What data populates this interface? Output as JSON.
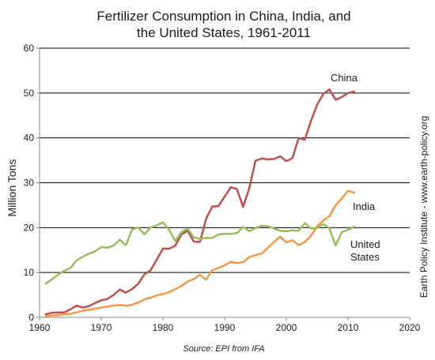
{
  "chart_data": {
    "type": "line",
    "title_line1": "Fertilizer Consumption in China, India, and",
    "title_line2": "the United States, 1961-2011",
    "xlabel": "",
    "ylabel": "Million Tons",
    "xlim": [
      1960,
      2020
    ],
    "ylim": [
      0,
      60
    ],
    "x_ticks": [
      1960,
      1970,
      1980,
      1990,
      2000,
      2010,
      2020
    ],
    "y_ticks": [
      0,
      10,
      20,
      30,
      40,
      50,
      60
    ],
    "grid": "horizontal",
    "source": "Source: EPI from IFA",
    "side_note": "Earth Policy Institute - www.earth-policy.org",
    "series": [
      {
        "name": "China",
        "color": "#c0504d",
        "x": [
          1961,
          1962,
          1963,
          1964,
          1965,
          1966,
          1967,
          1968,
          1969,
          1970,
          1971,
          1972,
          1973,
          1974,
          1975,
          1976,
          1977,
          1978,
          1979,
          1980,
          1981,
          1982,
          1983,
          1984,
          1985,
          1986,
          1987,
          1988,
          1989,
          1990,
          1991,
          1992,
          1993,
          1994,
          1995,
          1996,
          1997,
          1998,
          1999,
          2000,
          2001,
          2002,
          2003,
          2004,
          2005,
          2006,
          2007,
          2008,
          2009,
          2010,
          2011
        ],
        "values": [
          0.7,
          1.0,
          1.1,
          1.1,
          1.8,
          2.6,
          2.2,
          2.5,
          3.2,
          3.8,
          4.1,
          5.0,
          6.2,
          5.5,
          6.3,
          7.5,
          9.6,
          10.5,
          12.9,
          15.3,
          15.3,
          16.0,
          18.5,
          19.3,
          16.9,
          16.8,
          22.0,
          24.7,
          24.8,
          26.9,
          29.0,
          28.6,
          24.6,
          28.8,
          34.9,
          35.4,
          35.2,
          35.3,
          35.9,
          34.8,
          35.5,
          40.0,
          39.6,
          43.8,
          47.4,
          49.8,
          50.8,
          48.5,
          49.1,
          50.0,
          50.3
        ]
      },
      {
        "name": "India",
        "color": "#f79646",
        "x": [
          1961,
          1962,
          1963,
          1964,
          1965,
          1966,
          1967,
          1968,
          1969,
          1970,
          1971,
          1972,
          1973,
          1974,
          1975,
          1976,
          1977,
          1978,
          1979,
          1980,
          1981,
          1982,
          1983,
          1984,
          1985,
          1986,
          1987,
          1988,
          1989,
          1990,
          1991,
          1992,
          1993,
          1994,
          1995,
          1996,
          1997,
          1998,
          1999,
          2000,
          2001,
          2002,
          2003,
          2004,
          2005,
          2006,
          2007,
          2008,
          2009,
          2010,
          2011
        ],
        "values": [
          0.3,
          0.4,
          0.5,
          0.7,
          0.8,
          1.1,
          1.5,
          1.7,
          1.9,
          2.2,
          2.4,
          2.6,
          2.8,
          2.6,
          2.8,
          3.3,
          4.0,
          4.4,
          4.9,
          5.2,
          5.6,
          6.3,
          7.0,
          8.0,
          8.5,
          9.5,
          8.4,
          10.5,
          11.0,
          11.6,
          12.4,
          12.1,
          12.3,
          13.4,
          13.9,
          14.2,
          15.5,
          16.8,
          18.0,
          16.7,
          17.2,
          16.1,
          16.8,
          18.2,
          20.3,
          21.6,
          22.6,
          25.0,
          26.5,
          28.2,
          27.8
        ]
      },
      {
        "name": "United States",
        "color": "#9bbb59",
        "x": [
          1961,
          1962,
          1963,
          1964,
          1965,
          1966,
          1967,
          1968,
          1969,
          1970,
          1971,
          1972,
          1973,
          1974,
          1975,
          1976,
          1977,
          1978,
          1979,
          1980,
          1981,
          1982,
          1983,
          1984,
          1985,
          1986,
          1987,
          1988,
          1989,
          1990,
          1991,
          1992,
          1993,
          1994,
          1995,
          1996,
          1997,
          1998,
          1999,
          2000,
          2001,
          2002,
          2003,
          2004,
          2005,
          2006,
          2007,
          2008,
          2009,
          2010,
          2011
        ],
        "values": [
          7.5,
          8.5,
          9.5,
          10.4,
          11.0,
          12.7,
          13.5,
          14.2,
          14.7,
          15.7,
          15.5,
          16.0,
          17.3,
          16.1,
          19.6,
          20.0,
          18.5,
          20.0,
          20.5,
          21.2,
          19.5,
          17.0,
          19.0,
          19.8,
          17.8,
          17.5,
          17.7,
          17.7,
          18.5,
          18.6,
          18.6,
          18.8,
          20.2,
          19.2,
          19.9,
          20.4,
          20.3,
          19.8,
          19.3,
          19.2,
          19.4,
          19.3,
          21.0,
          19.8,
          19.9,
          20.8,
          19.8,
          16.0,
          19.0,
          19.5,
          20.2
        ]
      }
    ],
    "series_labels": {
      "china": "China",
      "india": "India",
      "us_line1": "United",
      "us_line2": "States"
    }
  }
}
